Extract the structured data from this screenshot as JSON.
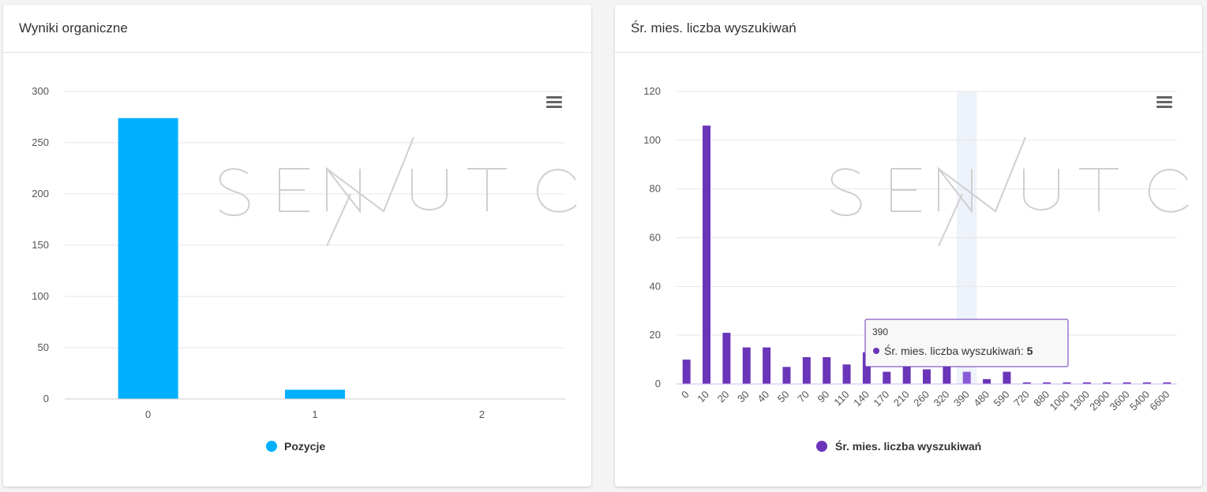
{
  "left_panel": {
    "title": "Wyniki organiczne"
  },
  "right_panel": {
    "title": "Śr. mies. liczba wyszukiwań"
  },
  "watermark": "SENUTO",
  "menu_icon": "hamburger-menu-icon",
  "colors": {
    "left_series": "#00b0ff",
    "right_series": "#6a35b8",
    "right_highlight": "#8a5bd6",
    "hover_band": "#eef2fa",
    "tooltip_border": "#6a35b8"
  },
  "chart_data": [
    {
      "type": "bar",
      "categories": [
        "0",
        "1",
        "2"
      ],
      "series": [
        {
          "name": "Pozycje",
          "values": [
            274,
            9,
            0
          ]
        }
      ],
      "xlabel": "",
      "ylabel": "",
      "ylim": [
        0,
        300
      ],
      "yticks": [
        "0",
        "50",
        "100",
        "150",
        "200",
        "250",
        "300"
      ],
      "grid": true,
      "legend": "bottom-center"
    },
    {
      "type": "bar",
      "categories": [
        "0",
        "10",
        "20",
        "30",
        "40",
        "50",
        "70",
        "90",
        "110",
        "140",
        "170",
        "210",
        "260",
        "320",
        "390",
        "480",
        "590",
        "720",
        "880",
        "1000",
        "1300",
        "2900",
        "3600",
        "5400",
        "6600"
      ],
      "series": [
        {
          "name": "Śr. mies. liczba wyszukiwań",
          "values": [
            10,
            106,
            21,
            15,
            15,
            7,
            11,
            11,
            8,
            13,
            5,
            12,
            6,
            10,
            5,
            2,
            5,
            0,
            0,
            0,
            0,
            0,
            0,
            0,
            0
          ]
        }
      ],
      "xlabel": "",
      "ylabel": "",
      "ylim": [
        0,
        120
      ],
      "yticks": [
        "0",
        "20",
        "40",
        "60",
        "80",
        "100",
        "120"
      ],
      "grid": true,
      "legend": "bottom-center",
      "tooltip": {
        "category": "390",
        "series_label": "Śr. mies. liczba wyszukiwań",
        "separator": ":",
        "value": "5"
      }
    }
  ]
}
